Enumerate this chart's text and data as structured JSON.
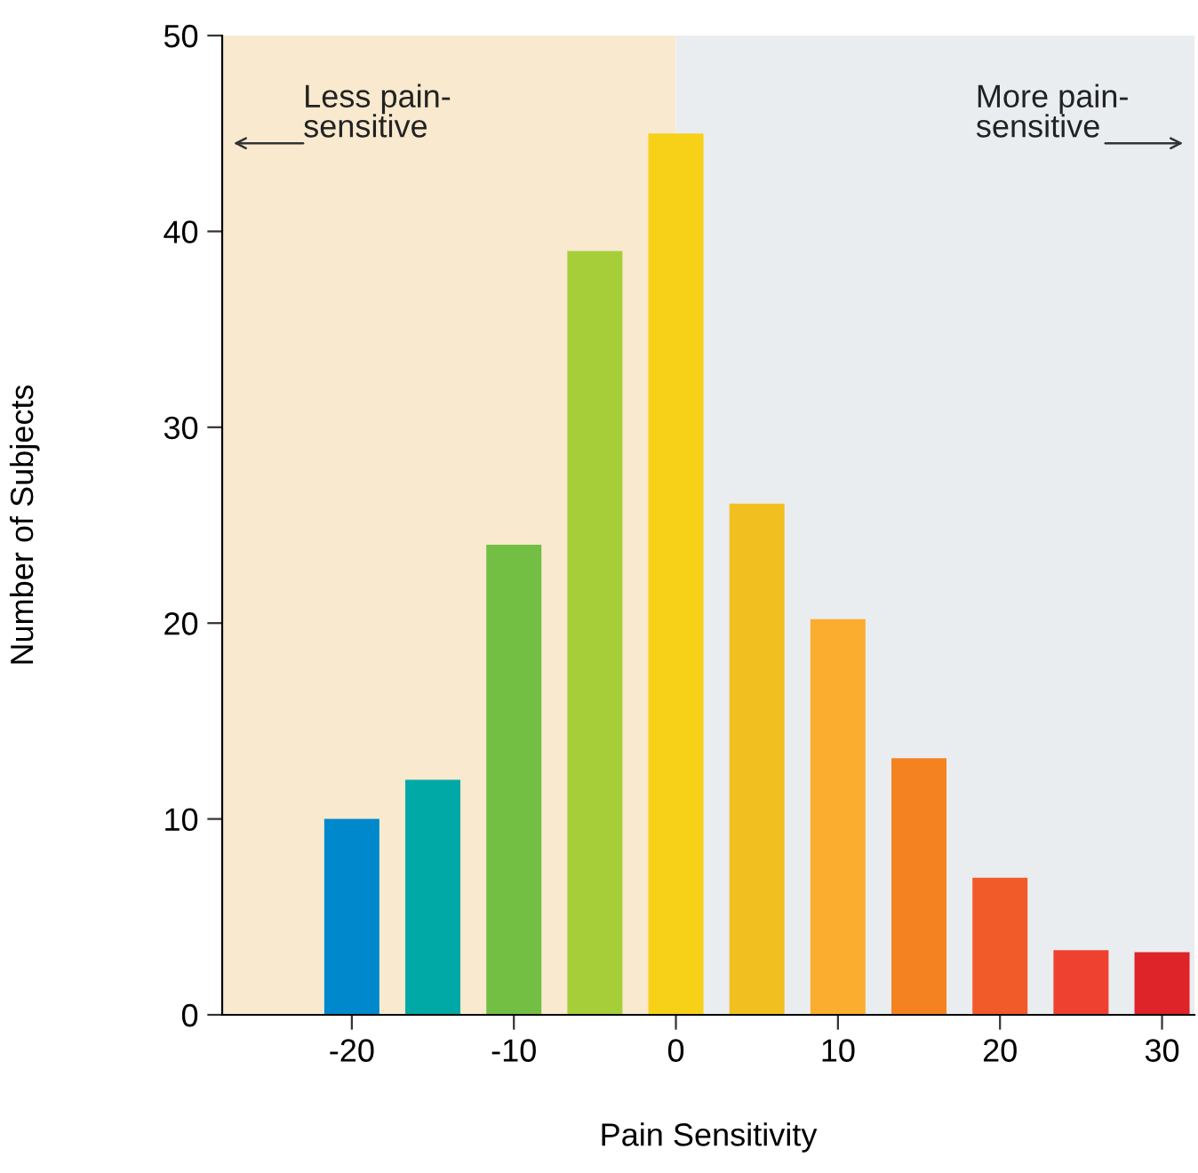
{
  "chart_data": {
    "type": "bar",
    "xlabel": "Pain Sensitivity",
    "ylabel": "Number of Subjects",
    "x": [
      -20,
      -15,
      -10,
      -5,
      0,
      5,
      10,
      15,
      20,
      25,
      30
    ],
    "values": [
      10,
      12,
      24,
      39,
      45,
      26.1,
      20.2,
      13.1,
      7,
      3.3,
      3.2
    ],
    "colors": [
      "#0088cc",
      "#00a9a6",
      "#72bf44",
      "#a6ce39",
      "#f7d117",
      "#f1bf1f",
      "#fbad2f",
      "#f58220",
      "#f15a29",
      "#ef4130",
      "#de2329"
    ],
    "xlim": [
      -28,
      32
    ],
    "xticks": [
      -20,
      -10,
      0,
      10,
      20,
      30
    ],
    "ylim": [
      0,
      50
    ],
    "yticks": [
      0,
      10,
      20,
      30,
      40,
      50
    ],
    "grid": false,
    "bands": [
      {
        "axis": "x",
        "from": -28,
        "to": 0,
        "label": "Less pain-\nsensitive",
        "color": "#f8e9cf"
      },
      {
        "axis": "x",
        "from": 0,
        "to": 32,
        "label": "More pain-\nsensitive",
        "color": "#eaedf0"
      }
    ]
  }
}
